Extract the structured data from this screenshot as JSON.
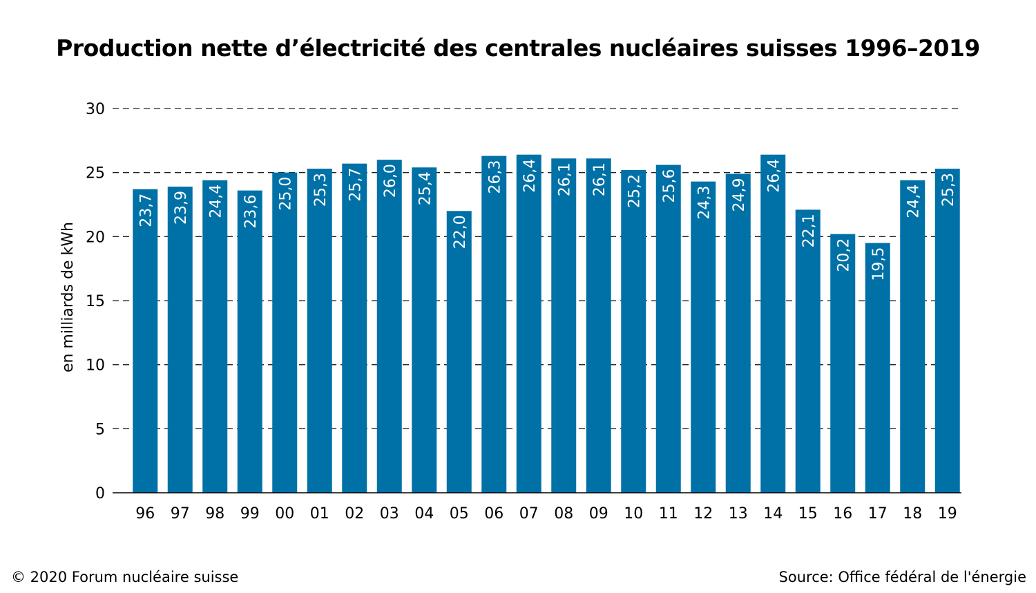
{
  "chart_data": {
    "type": "bar",
    "title": "Production nette d’électricité des centrales nucléaires suisses 1996–2019",
    "ylabel": "en milliards de kWh",
    "xlabel": "",
    "ylim": [
      0,
      30
    ],
    "yticks": [
      0,
      5,
      10,
      15,
      20,
      25,
      30
    ],
    "ytick_labels": [
      "0",
      "5",
      "10",
      "15",
      "20",
      "25",
      "30"
    ],
    "grid": "horizontal dashed",
    "bar_color": "#0071a7",
    "categories": [
      "96",
      "97",
      "98",
      "99",
      "00",
      "01",
      "02",
      "03",
      "04",
      "05",
      "06",
      "07",
      "08",
      "09",
      "10",
      "11",
      "12",
      "13",
      "14",
      "15",
      "16",
      "17",
      "18",
      "19"
    ],
    "values": [
      23.7,
      23.9,
      24.4,
      23.6,
      25.0,
      25.3,
      25.7,
      26.0,
      25.4,
      22.0,
      26.3,
      26.4,
      26.1,
      26.1,
      25.2,
      25.6,
      24.3,
      24.9,
      26.4,
      22.1,
      20.2,
      19.5,
      24.4,
      25.3
    ],
    "value_labels": [
      "23,7",
      "23,9",
      "24,4",
      "23,6",
      "25,0",
      "25,3",
      "25,7",
      "26,0",
      "25,4",
      "22,0",
      "26,3",
      "26,4",
      "26,1",
      "26,1",
      "25,2",
      "25,6",
      "24,3",
      "24,9",
      "26,4",
      "22,1",
      "20,2",
      "19,5",
      "24,4",
      "25,3"
    ]
  },
  "footer": {
    "copyright": "© 2020 Forum nucléaire suisse",
    "source": "Source: Office fédéral de l'énergie"
  }
}
